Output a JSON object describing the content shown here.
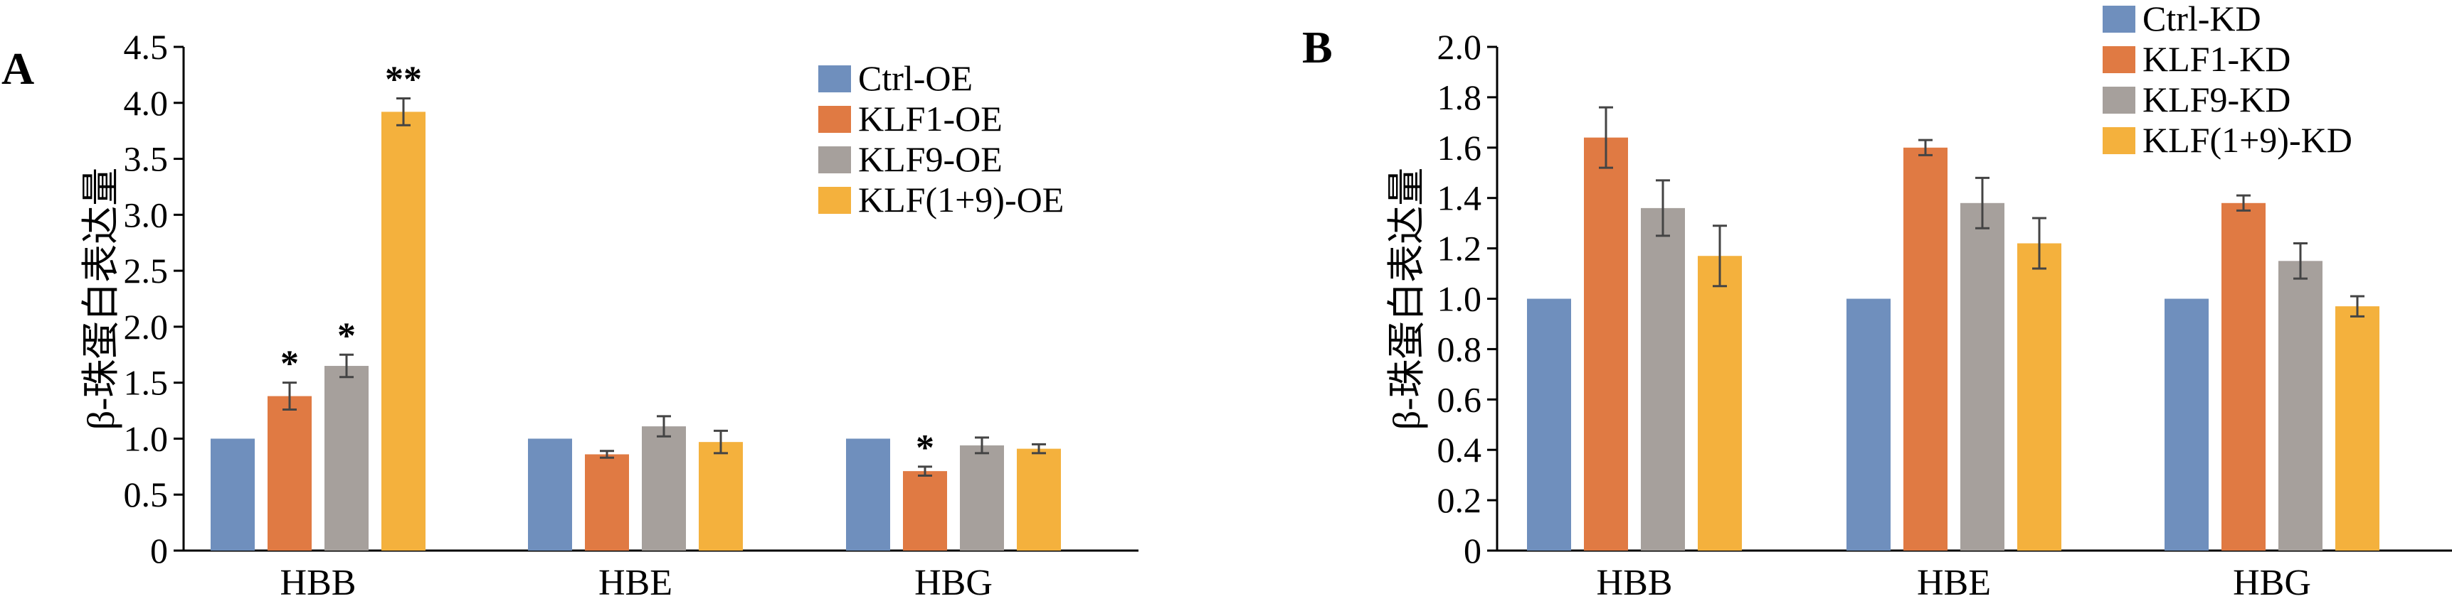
{
  "chart_data": [
    {
      "panel": "A",
      "type": "bar",
      "ylabel": "β-珠蛋白表达量",
      "categories": [
        "HBB",
        "HBE",
        "HBG"
      ],
      "ylim": [
        0,
        4.5
      ],
      "yticks": [
        "0",
        "0.5",
        "1.0",
        "1.5",
        "2.0",
        "2.5",
        "3.0",
        "3.5",
        "4.0",
        "4.5"
      ],
      "legend_position": "top-right",
      "series": [
        {
          "name": "Ctrl-OE",
          "color": "#6f8fbd",
          "values": [
            1.0,
            1.0,
            1.0
          ],
          "errors": [
            0,
            0,
            0
          ],
          "sig": [
            "",
            "",
            ""
          ]
        },
        {
          "name": "KLF1-OE",
          "color": "#e07a43",
          "values": [
            1.38,
            0.86,
            0.71
          ],
          "errors": [
            0.12,
            0.03,
            0.04
          ],
          "sig": [
            "*",
            "",
            "*"
          ]
        },
        {
          "name": "KLF9-OE",
          "color": "#a6a09c",
          "values": [
            1.65,
            1.11,
            0.94
          ],
          "errors": [
            0.1,
            0.09,
            0.07
          ],
          "sig": [
            "*",
            "",
            ""
          ]
        },
        {
          "name": "KLF(1+9)-OE",
          "color": "#f4b13d",
          "values": [
            3.92,
            0.97,
            0.91
          ],
          "errors": [
            0.12,
            0.1,
            0.04
          ],
          "sig": [
            "**",
            "",
            ""
          ]
        }
      ]
    },
    {
      "panel": "B",
      "type": "bar",
      "ylabel": "β-珠蛋白表达量",
      "categories": [
        "HBB",
        "HBE",
        "HBG"
      ],
      "ylim": [
        0,
        2.0
      ],
      "yticks": [
        "0",
        "0.2",
        "0.4",
        "0.6",
        "0.8",
        "1.0",
        "1.2",
        "1.4",
        "1.6",
        "1.8",
        "2.0"
      ],
      "legend_position": "top-right",
      "series": [
        {
          "name": "Ctrl-KD",
          "color": "#6f8fbd",
          "values": [
            1.0,
            1.0,
            1.0
          ],
          "errors": [
            0,
            0,
            0
          ]
        },
        {
          "name": "KLF1-KD",
          "color": "#e07a43",
          "values": [
            1.64,
            1.6,
            1.38
          ],
          "errors": [
            0.12,
            0.03,
            0.03
          ]
        },
        {
          "name": "KLF9-KD",
          "color": "#a6a09c",
          "values": [
            1.36,
            1.38,
            1.15
          ],
          "errors": [
            0.11,
            0.1,
            0.07
          ]
        },
        {
          "name": "KLF(1+9)-KD",
          "color": "#f4b13d",
          "values": [
            1.17,
            1.22,
            0.97
          ],
          "errors": [
            0.12,
            0.1,
            0.04
          ]
        }
      ]
    }
  ]
}
